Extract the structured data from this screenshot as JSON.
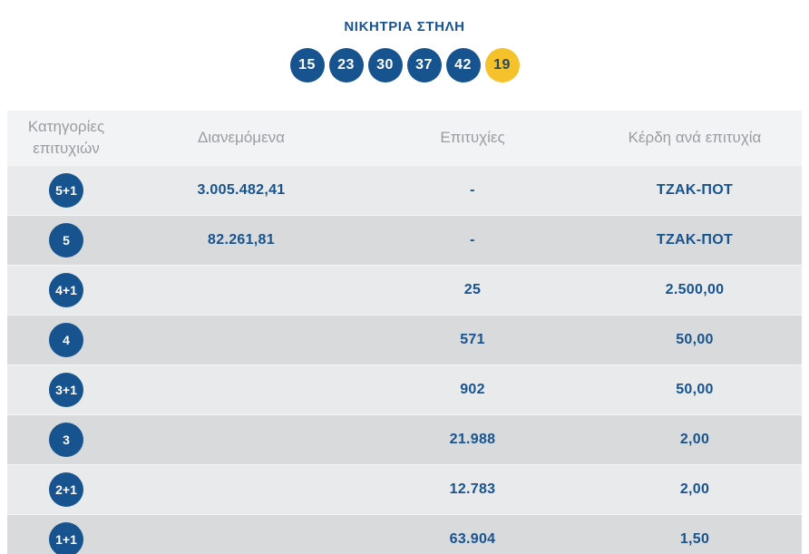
{
  "winning": {
    "title": "ΝΙΚΗΤΡΙΑ ΣΤΗΛΗ"
  },
  "winning_numbers": [
    {
      "value": "15",
      "type": "main"
    },
    {
      "value": "23",
      "type": "main"
    },
    {
      "value": "30",
      "type": "main"
    },
    {
      "value": "37",
      "type": "main"
    },
    {
      "value": "42",
      "type": "main"
    },
    {
      "value": "19",
      "type": "joker"
    }
  ],
  "table": {
    "headers": [
      "Κατηγορίες επιτυχιών",
      "Διανεμόμενα",
      "Επιτυχίες",
      "Κέρδη ανά επιτυχία"
    ],
    "rows": [
      {
        "category": "5+1",
        "distributed": "3.005.482,41",
        "wins": "-",
        "prize": "ΤΖΑΚ-ΠΟΤ"
      },
      {
        "category": "5",
        "distributed": "82.261,81",
        "wins": "-",
        "prize": "ΤΖΑΚ-ΠΟΤ"
      },
      {
        "category": "4+1",
        "distributed": "",
        "wins": "25",
        "prize": "2.500,00"
      },
      {
        "category": "4",
        "distributed": "",
        "wins": "571",
        "prize": "50,00"
      },
      {
        "category": "3+1",
        "distributed": "",
        "wins": "902",
        "prize": "50,00"
      },
      {
        "category": "3",
        "distributed": "",
        "wins": "21.988",
        "prize": "2,00"
      },
      {
        "category": "2+1",
        "distributed": "",
        "wins": "12.783",
        "prize": "2,00"
      },
      {
        "category": "1+1",
        "distributed": "",
        "wins": "63.904",
        "prize": "1,50"
      }
    ]
  },
  "colors": {
    "primary_blue": "#17538f",
    "joker_yellow": "#f5c22b",
    "joker_text": "#254a61",
    "header_text": "#9a9c9f",
    "header_bg": "#f2f3f4",
    "row_light": "#e9eaec",
    "row_dark": "#d9dadc"
  }
}
